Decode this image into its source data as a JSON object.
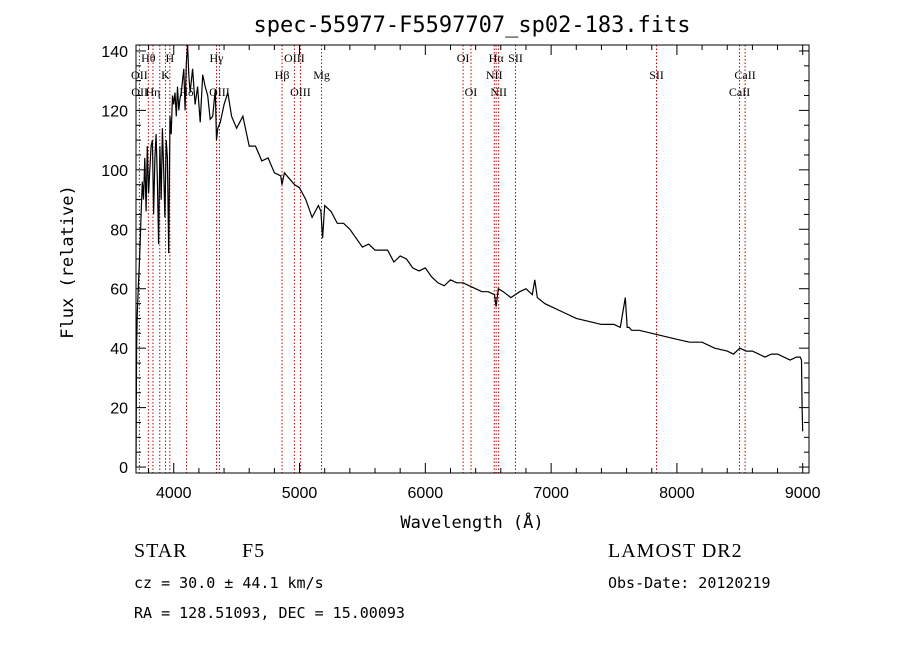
{
  "chart_data": {
    "type": "line",
    "title": "spec-55977-F5597707_sp02-183.fits",
    "xlabel": "Wavelength (Å)",
    "ylabel": "Flux (relative)",
    "xlim": [
      3700,
      9050
    ],
    "ylim": [
      -2,
      142
    ],
    "xticks": [
      4000,
      5000,
      6000,
      7000,
      8000,
      9000
    ],
    "yticks": [
      0,
      20,
      40,
      60,
      80,
      100,
      120,
      140
    ],
    "colors": {
      "spectrum": "#000000",
      "lines": "#c00000"
    },
    "series": [
      {
        "name": "flux",
        "x": [
          3700,
          3705,
          3710,
          3720,
          3730,
          3740,
          3750,
          3760,
          3770,
          3780,
          3790,
          3800,
          3810,
          3820,
          3830,
          3840,
          3850,
          3860,
          3870,
          3880,
          3890,
          3900,
          3910,
          3920,
          3930,
          3940,
          3950,
          3960,
          3970,
          3980,
          3990,
          4000,
          4010,
          4020,
          4030,
          4040,
          4050,
          4060,
          4070,
          4080,
          4090,
          4100,
          4110,
          4120,
          4130,
          4150,
          4170,
          4190,
          4210,
          4230,
          4250,
          4270,
          4290,
          4310,
          4330,
          4340,
          4350,
          4370,
          4400,
          4430,
          4460,
          4500,
          4550,
          4600,
          4650,
          4700,
          4750,
          4800,
          4850,
          4861,
          4880,
          4920,
          4960,
          5000,
          5050,
          5100,
          5150,
          5170,
          5183,
          5200,
          5250,
          5300,
          5350,
          5400,
          5450,
          5500,
          5550,
          5600,
          5650,
          5700,
          5750,
          5800,
          5850,
          5900,
          5950,
          6000,
          6050,
          6100,
          6150,
          6200,
          6250,
          6300,
          6350,
          6400,
          6450,
          6500,
          6550,
          6563,
          6580,
          6620,
          6680,
          6750,
          6800,
          6850,
          6870,
          6890,
          6950,
          7000,
          7100,
          7200,
          7300,
          7400,
          7500,
          7550,
          7590,
          7605,
          7620,
          7640,
          7700,
          7800,
          7900,
          8000,
          8100,
          8200,
          8300,
          8400,
          8450,
          8500,
          8550,
          8600,
          8650,
          8700,
          8750,
          8800,
          8850,
          8900,
          8950,
          8980,
          8990,
          8995,
          9000
        ],
        "values": [
          0,
          40,
          52,
          62,
          72,
          84,
          96,
          90,
          104,
          86,
          108,
          92,
          100,
          108,
          110,
          85,
          104,
          112,
          96,
          75,
          108,
          90,
          114,
          100,
          84,
          110,
          104,
          72,
          118,
          112,
          125,
          122,
          126,
          118,
          128,
          120,
          124,
          126,
          130,
          134,
          120,
          136,
          142,
          132,
          126,
          134,
          122,
          128,
          116,
          132,
          128,
          125,
          117,
          118,
          127,
          110,
          114,
          116,
          122,
          126,
          118,
          114,
          118,
          108,
          108,
          103,
          104,
          99,
          98,
          95,
          99,
          97,
          95,
          94,
          90,
          84,
          88,
          86,
          77,
          88,
          86,
          82,
          82,
          80,
          77,
          74,
          75,
          73,
          73,
          73,
          69,
          71,
          70,
          67,
          66,
          67,
          64,
          62,
          61,
          63,
          62,
          62,
          61,
          60,
          59,
          59,
          58,
          54,
          60,
          59,
          57,
          59,
          60,
          58,
          63,
          57,
          55,
          54,
          52,
          50,
          49,
          48,
          48,
          47,
          57,
          47,
          47,
          46,
          46,
          45,
          44,
          43,
          42,
          42,
          40,
          39,
          38,
          40,
          39,
          39,
          38,
          37,
          38,
          38,
          37,
          36,
          37,
          37,
          36,
          20,
          12
        ]
      }
    ],
    "annotations": {
      "emission_lines": [
        {
          "label": "Hθ",
          "x": 3798,
          "row": 1
        },
        {
          "label": "H",
          "x": 3969,
          "row": 1
        },
        {
          "label": "Hγ",
          "x": 4340,
          "row": 1
        },
        {
          "label": "OIII",
          "x": 4959,
          "row": 1
        },
        {
          "label": "OI",
          "x": 6300,
          "row": 1
        },
        {
          "label": "Hα",
          "x": 6563,
          "row": 1
        },
        {
          "label": "SII",
          "x": 6717,
          "row": 1
        },
        {
          "label": "OII",
          "x": 3727,
          "row": 2
        },
        {
          "label": "K",
          "x": 3934,
          "row": 2
        },
        {
          "label": "Hβ",
          "x": 4861,
          "row": 2
        },
        {
          "label": "Mg",
          "x": 5175,
          "row": 2
        },
        {
          "label": "NII",
          "x": 6548,
          "row": 2
        },
        {
          "label": "SII",
          "x": 7838,
          "row": 2
        },
        {
          "label": "CaII",
          "x": 8542,
          "row": 2
        },
        {
          "label": "OII",
          "x": 3729,
          "row": 3
        },
        {
          "label": "Hη",
          "x": 3835,
          "row": 3
        },
        {
          "label": "Hδ",
          "x": 4102,
          "row": 3
        },
        {
          "label": "OIII",
          "x": 4363,
          "row": 3
        },
        {
          "label": "OIII",
          "x": 5007,
          "row": 3
        },
        {
          "label": "OI",
          "x": 6363,
          "row": 3
        },
        {
          "label": "NII",
          "x": 6583,
          "row": 3
        },
        {
          "label": "CaII",
          "x": 8498,
          "row": 3
        }
      ],
      "marker_lines": [
        3727,
        3798,
        3835,
        3889,
        3934,
        3969,
        4102,
        4340,
        4363,
        4861,
        4959,
        5007,
        5175,
        6300,
        6363,
        6548,
        6563,
        6583,
        6717,
        7838,
        8498,
        8542
      ]
    }
  },
  "info": {
    "object_class": "STAR",
    "subclass": "F5",
    "redshift": "cz = 30.0 ± 44.1 km/s",
    "coords": "RA = 128.51093, DEC =  15.00093",
    "survey": "LAMOST DR2",
    "obs_date": "Obs-Date: 20120219"
  }
}
